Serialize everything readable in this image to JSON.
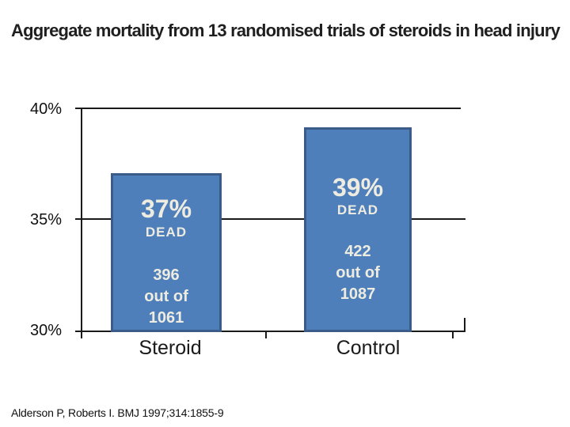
{
  "slide": {
    "title": "Aggregate mortality from 13 randomised trials of steroids in head injury",
    "citation": "Alderson P, Roberts I. BMJ 1997;314:1855-9"
  },
  "chart_data": {
    "type": "bar",
    "title": "Aggregate mortality from 13 randomised trials of steroids in head injury",
    "categories": [
      "Steroid",
      "Control"
    ],
    "series": [
      {
        "name": "Aggregate mortality",
        "values": [
          37,
          39
        ]
      }
    ],
    "value_unit": "%",
    "ylim": [
      30,
      40
    ],
    "y_ticks": [
      "40%",
      "35%",
      "30%"
    ],
    "grid": true,
    "legend": false,
    "bars": [
      {
        "category": "Steroid",
        "percent_label": "37%",
        "status_label": "DEAD",
        "numerator": "396",
        "preposition": "out of",
        "denominator": "1061"
      },
      {
        "category": "Control",
        "percent_label": "39%",
        "status_label": "DEAD",
        "numerator": "422",
        "preposition": "out of",
        "denominator": "1087"
      }
    ],
    "colors": {
      "bar_fill": "#4e7fba",
      "bar_border": "#3b5c88",
      "axis": "#1a1a1a",
      "bar_text": "#eeece1"
    }
  }
}
